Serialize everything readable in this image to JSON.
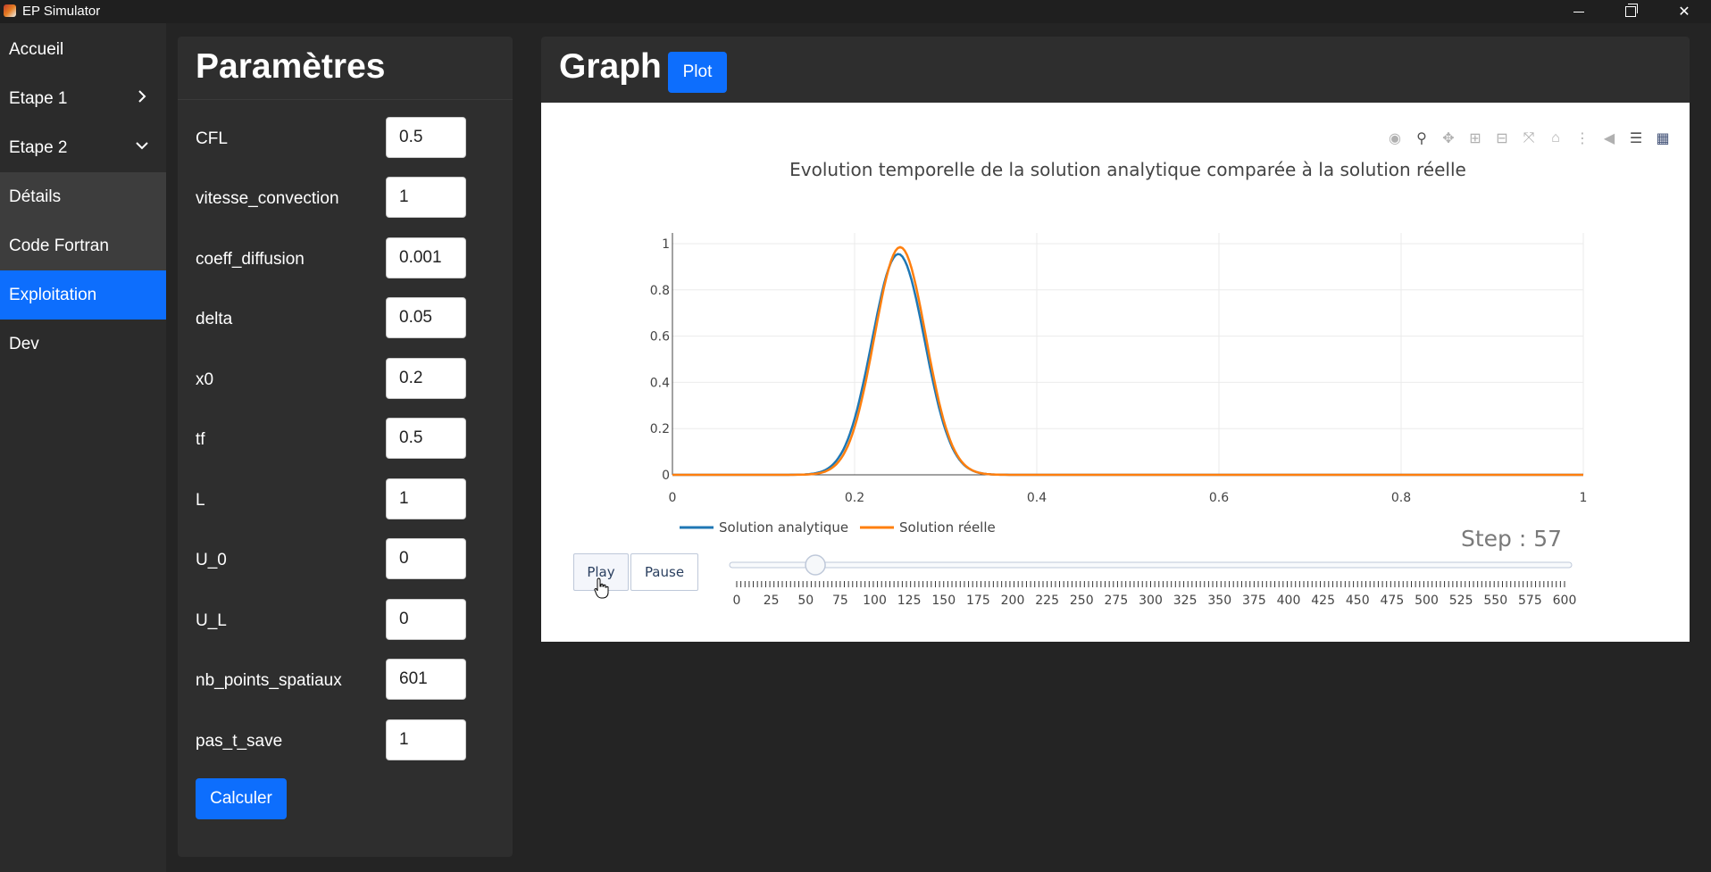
{
  "window": {
    "title": "EP Simulator"
  },
  "sidebar": {
    "items": [
      {
        "label": "Accueil"
      },
      {
        "label": "Etape 1"
      },
      {
        "label": "Etape 2"
      },
      {
        "label": "Détails"
      },
      {
        "label": "Code Fortran"
      },
      {
        "label": "Exploitation"
      },
      {
        "label": "Dev"
      }
    ]
  },
  "params": {
    "title": "Paramètres",
    "fields": [
      {
        "label": "CFL",
        "value": "0.5"
      },
      {
        "label": "vitesse_convection",
        "value": "1"
      },
      {
        "label": "coeff_diffusion",
        "value": "0.001"
      },
      {
        "label": "delta",
        "value": "0.05"
      },
      {
        "label": "x0",
        "value": "0.2"
      },
      {
        "label": "tf",
        "value": "0.5"
      },
      {
        "label": "L",
        "value": "1"
      },
      {
        "label": "U_0",
        "value": "0"
      },
      {
        "label": "U_L",
        "value": "0"
      },
      {
        "label": "nb_points_spatiaux",
        "value": "601"
      },
      {
        "label": "pas_t_save",
        "value": "1"
      }
    ],
    "calc_label": "Calculer"
  },
  "graph": {
    "title": "Graph",
    "plot_label": "Plot",
    "modebar_icons": [
      "camera-icon",
      "zoom-icon",
      "pan-icon",
      "zoom-in-icon",
      "zoom-out-icon",
      "autoscale-icon",
      "reset-axes-icon",
      "spike-lines-icon",
      "hover-closest-icon",
      "hover-compare-icon",
      "plotly-logo-icon"
    ],
    "play_label": "Play",
    "pause_label": "Pause",
    "step_label": "Step : 57",
    "slider": {
      "min": 0,
      "max": 600,
      "value": 57,
      "tick_labels": [
        "0",
        "25",
        "50",
        "75",
        "100",
        "125",
        "150",
        "175",
        "200",
        "225",
        "250",
        "275",
        "300",
        "325",
        "350",
        "375",
        "400",
        "425",
        "450",
        "475",
        "500",
        "525",
        "550",
        "575",
        "600"
      ]
    }
  },
  "chart_data": {
    "type": "line",
    "title": "Evolution temporelle de la solution analytique comparée à la solution réelle",
    "xlim": [
      0,
      1
    ],
    "ylim": [
      0,
      1
    ],
    "xticks": [
      "0",
      "0.2",
      "0.4",
      "0.6",
      "0.8",
      "1"
    ],
    "yticks": [
      "0",
      "0.2",
      "0.4",
      "0.6",
      "0.8",
      "1"
    ],
    "grid": true,
    "legend": "bottom-left",
    "series": [
      {
        "name": "Solution analytique",
        "color": "#1f77b4",
        "peak_x": 0.248,
        "peak_y": 0.955,
        "width": 0.041
      },
      {
        "name": "Solution réelle",
        "color": "#ff7f0e",
        "peak_x": 0.25,
        "peak_y": 0.985,
        "width": 0.04
      }
    ]
  }
}
